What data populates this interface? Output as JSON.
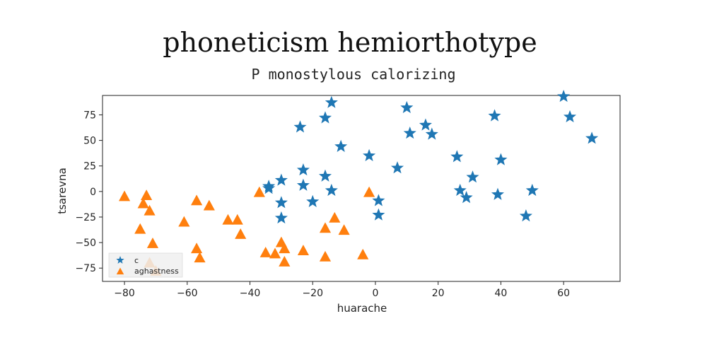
{
  "chart_data": {
    "type": "scatter",
    "title": "phoneticism hemiorthotype",
    "subtitle": "P monostylous calorizing",
    "xlabel": "huarache",
    "ylabel": "tsarevna",
    "xlim": [
      -87,
      78
    ],
    "ylim": [
      -88,
      94
    ],
    "xticks": [
      "−80",
      "−60",
      "−40",
      "−20",
      "0",
      "20",
      "40",
      "60"
    ],
    "xtick_values": [
      -80,
      -60,
      -40,
      -20,
      0,
      20,
      40,
      60
    ],
    "yticks": [
      "75",
      "50",
      "25",
      "0",
      "−25",
      "−50",
      "−75"
    ],
    "ytick_values": [
      75,
      50,
      25,
      0,
      -25,
      -50,
      -75
    ],
    "grid": false,
    "legend_position": "lower-left",
    "series": [
      {
        "name": "c",
        "marker": "star",
        "color": "#1f77b4",
        "points": [
          [
            -14,
            87
          ],
          [
            -16,
            72
          ],
          [
            -24,
            63
          ],
          [
            -11,
            44
          ],
          [
            10,
            82
          ],
          [
            11,
            57
          ],
          [
            16,
            65
          ],
          [
            18,
            56
          ],
          [
            38,
            74
          ],
          [
            60,
            93
          ],
          [
            62,
            73
          ],
          [
            69,
            52
          ],
          [
            -2,
            35
          ],
          [
            7,
            23
          ],
          [
            26,
            34
          ],
          [
            31,
            14
          ],
          [
            40,
            31
          ],
          [
            -23,
            21
          ],
          [
            -16,
            15
          ],
          [
            -30,
            11
          ],
          [
            -34,
            5
          ],
          [
            -34,
            3
          ],
          [
            -23,
            6
          ],
          [
            -14,
            1
          ],
          [
            27,
            1
          ],
          [
            29,
            -6
          ],
          [
            39,
            -3
          ],
          [
            50,
            1
          ],
          [
            -30,
            -11
          ],
          [
            -20,
            -10
          ],
          [
            1,
            -9
          ],
          [
            1,
            -23
          ],
          [
            48,
            -24
          ],
          [
            -30,
            -26
          ]
        ]
      },
      {
        "name": "aghastness",
        "marker": "triangle",
        "color": "#ff7f0e",
        "points": [
          [
            -80,
            -5
          ],
          [
            -73,
            -4
          ],
          [
            -74,
            -12
          ],
          [
            -72,
            -19
          ],
          [
            -75,
            -37
          ],
          [
            -71,
            -51
          ],
          [
            -72,
            -70
          ],
          [
            -70,
            -78
          ],
          [
            -61,
            -30
          ],
          [
            -57,
            -9
          ],
          [
            -57,
            -56
          ],
          [
            -56,
            -65
          ],
          [
            -53,
            -14
          ],
          [
            -47,
            -28
          ],
          [
            -44,
            -28
          ],
          [
            -43,
            -42
          ],
          [
            -37,
            -1
          ],
          [
            -35,
            -60
          ],
          [
            -32,
            -61
          ],
          [
            -30,
            -50
          ],
          [
            -29,
            -56
          ],
          [
            -29,
            -69
          ],
          [
            -23,
            -58
          ],
          [
            -16,
            -36
          ],
          [
            -16,
            -64
          ],
          [
            -13,
            -26
          ],
          [
            -10,
            -38
          ],
          [
            -4,
            -62
          ],
          [
            -2,
            -1
          ]
        ]
      }
    ]
  }
}
